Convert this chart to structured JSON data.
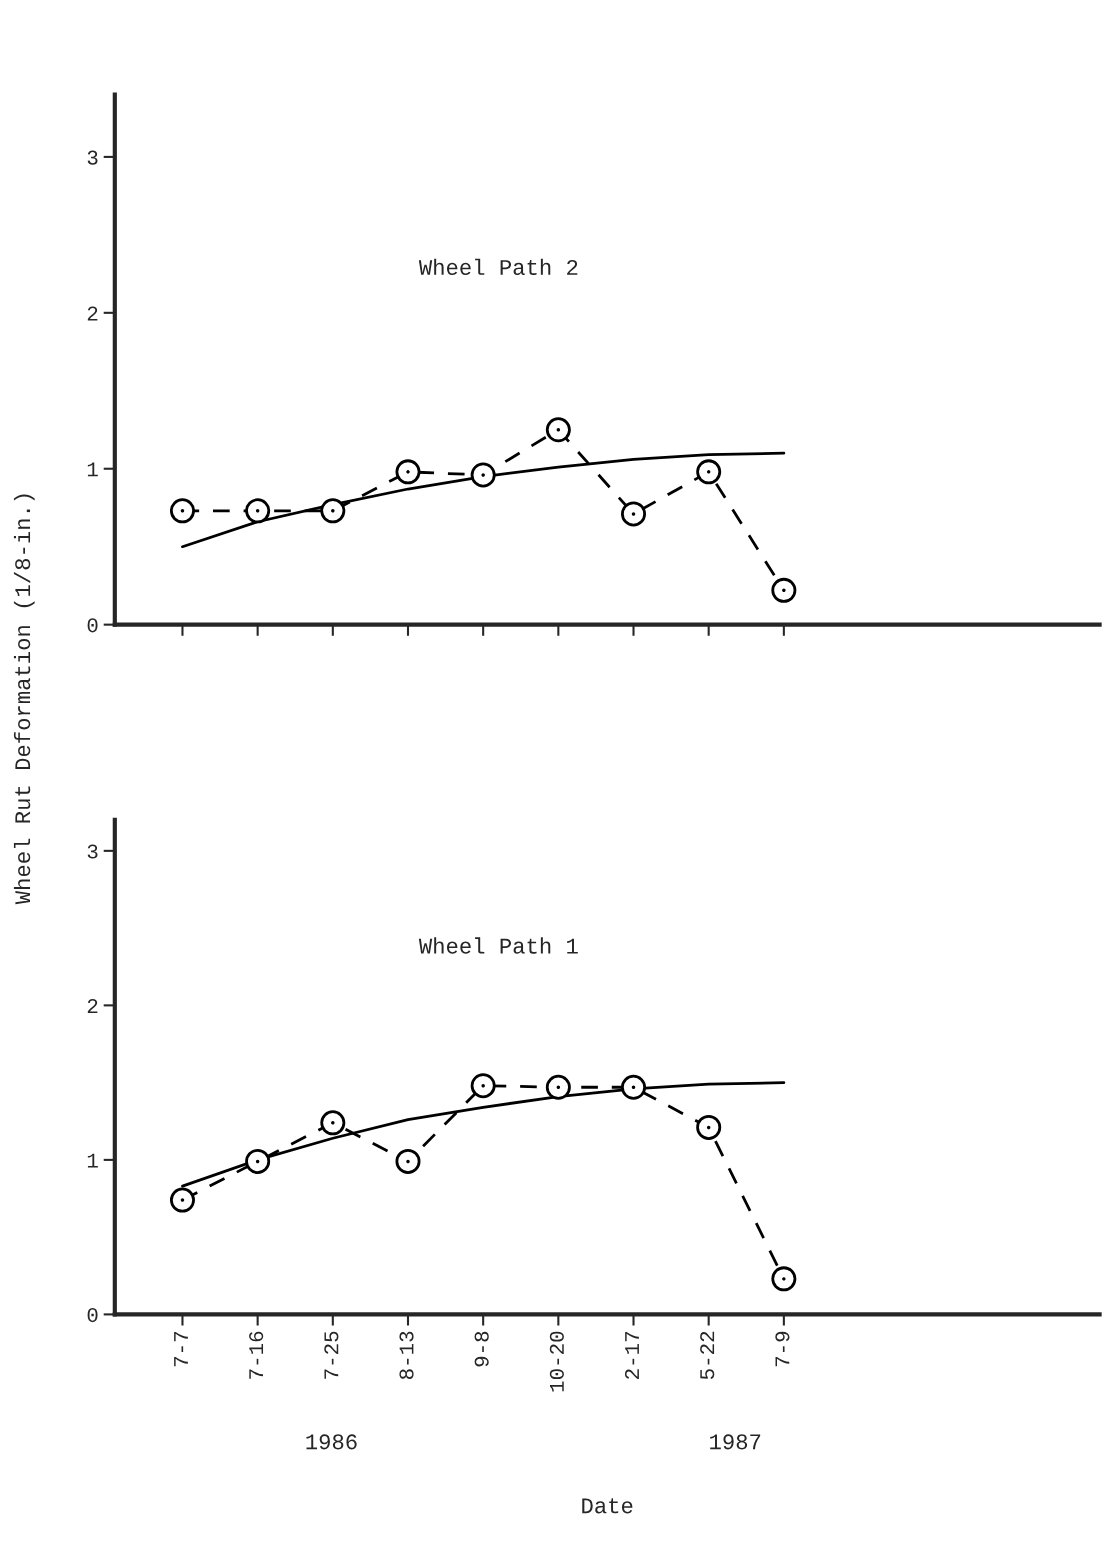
{
  "chart_data": [
    {
      "type": "line",
      "title": "Wheel Path 2",
      "ylabel": "Wheel Rut Deformation (1/8-in.)",
      "categories": [
        null,
        null,
        null,
        null,
        null,
        null,
        null,
        null,
        null
      ],
      "ylim": [
        0,
        3.4
      ],
      "yticks": [
        0,
        1,
        2,
        3
      ],
      "tick_labels": "y",
      "grid": false,
      "legend": false,
      "series": [
        {
          "color": "#000000",
          "line_style": "dashed",
          "marker": "circle",
          "values": [
            0.73,
            0.73,
            0.73,
            0.98,
            0.96,
            1.25,
            0.71,
            0.98,
            0.22
          ]
        },
        {
          "color": "#000000",
          "line_style": "solid",
          "marker": "none",
          "values": [
            0.5,
            0.66,
            0.77,
            0.87,
            0.95,
            1.01,
            1.06,
            1.09,
            1.1
          ]
        }
      ]
    },
    {
      "type": "line",
      "title": "Wheel Path 1",
      "xlabel": "Date",
      "categories": [
        "7-7",
        "7-16",
        "7-25",
        "8-13",
        "9-8",
        "10-20",
        "2-17",
        "5-22",
        "7-9"
      ],
      "ylim": [
        0,
        3.2
      ],
      "yticks": [
        0,
        1,
        2,
        3
      ],
      "grid": false,
      "legend": false,
      "annotations": [
        "1986",
        "1987"
      ],
      "series": [
        {
          "color": "#000000",
          "line_style": "dashed",
          "marker": "circle",
          "values": [
            0.74,
            0.99,
            1.24,
            0.99,
            1.48,
            1.47,
            1.47,
            1.21,
            0.23
          ]
        },
        {
          "color": "#000000",
          "line_style": "solid",
          "marker": "none",
          "values": [
            0.83,
            1.0,
            1.14,
            1.26,
            1.34,
            1.41,
            1.46,
            1.49,
            1.5
          ]
        }
      ]
    }
  ]
}
